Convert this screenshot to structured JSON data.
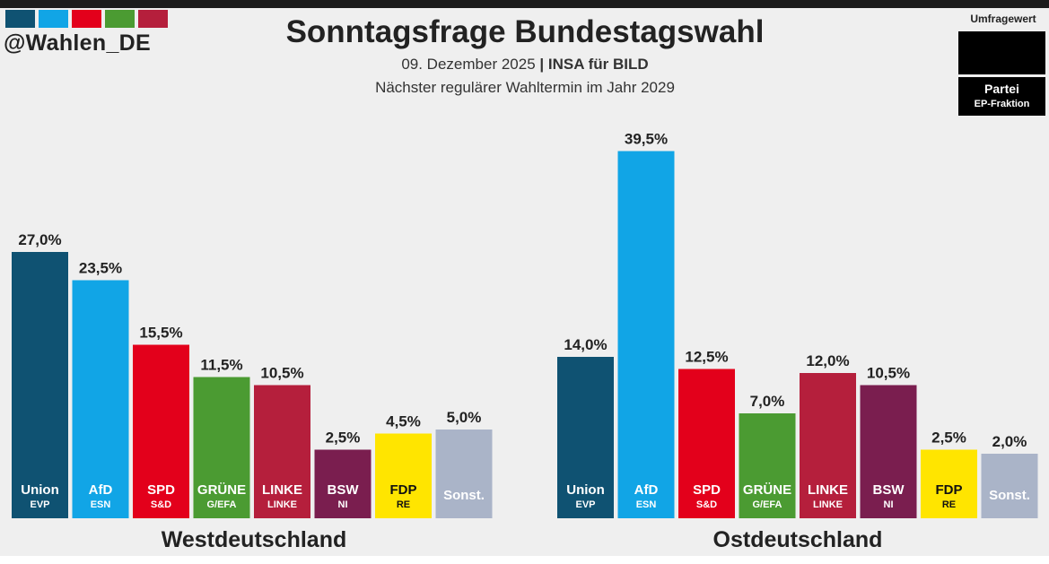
{
  "header": {
    "handle": "@Wahlen_DE",
    "title": "Sonntagsfrage Bundestagswahl",
    "date": "09. Dezember 2025",
    "separator": "|",
    "source": "INSA für BILD",
    "note": "Nächster regulärer Wahltermin im Jahr 2029",
    "swatch_colors": [
      "#0f5272",
      "#11a5e6",
      "#e3001b",
      "#4b9b32",
      "#b51f3c"
    ]
  },
  "legend": {
    "value_label": "Umfragewert",
    "party_label": "Partei",
    "faction_label": "EP-Fraktion"
  },
  "parties": [
    {
      "name": "Union",
      "faction": "EVP",
      "color": "#0f5272",
      "label_color": "#ffffff"
    },
    {
      "name": "AfD",
      "faction": "ESN",
      "color": "#11a5e6",
      "label_color": "#ffffff"
    },
    {
      "name": "SPD",
      "faction": "S&D",
      "color": "#e3001b",
      "label_color": "#ffffff"
    },
    {
      "name": "GRÜNE",
      "faction": "G/EFA",
      "color": "#4b9b32",
      "label_color": "#ffffff"
    },
    {
      "name": "LINKE",
      "faction": "LINKE",
      "color": "#b51f3c",
      "label_color": "#ffffff"
    },
    {
      "name": "BSW",
      "faction": "NI",
      "color": "#7a1e4f",
      "label_color": "#ffffff"
    },
    {
      "name": "FDP",
      "faction": "RE",
      "color": "#ffe500",
      "label_color": "#111111"
    },
    {
      "name": "Sonst.",
      "faction": "",
      "color": "#aab4c8",
      "label_color": "#ffffff"
    }
  ],
  "chart_data": [
    {
      "type": "bar",
      "title": "Westdeutschland",
      "categories": [
        "Union",
        "AfD",
        "SPD",
        "GRÜNE",
        "LINKE",
        "BSW",
        "FDP",
        "Sonst."
      ],
      "values": [
        27.0,
        23.5,
        15.5,
        11.5,
        10.5,
        2.5,
        4.5,
        5.0
      ],
      "value_labels": [
        "27,0%",
        "23,5%",
        "15,5%",
        "11,5%",
        "10,5%",
        "2,5%",
        "4,5%",
        "5,0%"
      ],
      "unit": "%",
      "ylim": [
        0,
        40
      ]
    },
    {
      "type": "bar",
      "title": "Ostdeutschland",
      "categories": [
        "Union",
        "AfD",
        "SPD",
        "GRÜNE",
        "LINKE",
        "BSW",
        "FDP",
        "Sonst."
      ],
      "values": [
        14.0,
        39.5,
        12.5,
        7.0,
        12.0,
        10.5,
        2.5,
        2.0
      ],
      "value_labels": [
        "14,0%",
        "39,5%",
        "12,5%",
        "7,0%",
        "12,0%",
        "10,5%",
        "2,5%",
        "2,0%"
      ],
      "unit": "%",
      "ylim": [
        0,
        40
      ]
    }
  ]
}
